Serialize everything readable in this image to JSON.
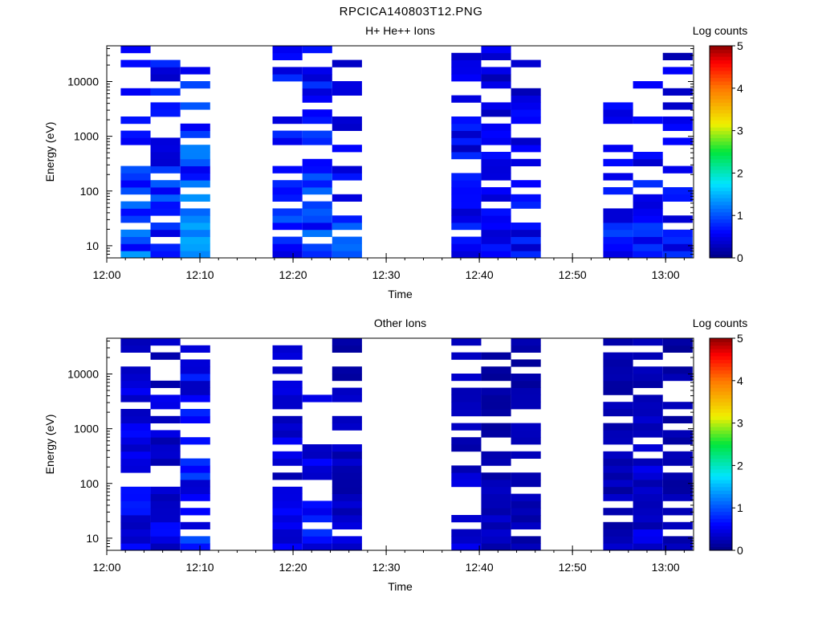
{
  "figure_title": "RPCICA140803T12.PNG",
  "chart_data": [
    {
      "type": "heatmap",
      "title": "H+ He++ Ions",
      "xlabel": "Time",
      "ylabel": "Energy (eV)",
      "y_scale": "log",
      "xlim": [
        "12:00",
        "13:03"
      ],
      "ylim": [
        6,
        45000
      ],
      "x_ticks": [
        "12:00",
        "12:10",
        "12:20",
        "12:30",
        "12:40",
        "12:50",
        "13:00"
      ],
      "y_ticks": [
        "10",
        "100",
        "1000",
        "10000"
      ],
      "colorbar": {
        "label": "Log counts",
        "ticks": [
          "0",
          "1",
          "2",
          "3",
          "4",
          "5"
        ],
        "range": [
          0,
          5
        ]
      },
      "time_bins": [
        [
          "12:01.5",
          "12:04.7"
        ],
        [
          "12:04.7",
          "12:07.9"
        ],
        [
          "12:07.9",
          "12:11.1"
        ],
        [
          "12:17.8",
          "12:21.0"
        ],
        [
          "12:21.0",
          "12:24.2"
        ],
        [
          "12:24.2",
          "12:27.4"
        ],
        [
          "12:37.0",
          "12:40.2"
        ],
        [
          "12:40.2",
          "12:43.4"
        ],
        [
          "12:43.4",
          "12:46.6"
        ],
        [
          "12:53.3",
          "12:56.5"
        ],
        [
          "12:56.5",
          "12:59.7"
        ],
        [
          "12:59.7",
          "13:02.9"
        ]
      ],
      "peak_log_counts": [
        1.4,
        1.2,
        1.6,
        1.2,
        1.3,
        1.2,
        1.0,
        0.9,
        0.9,
        1.0,
        1.0,
        0.9
      ],
      "empty_time_ranges": [
        [
          "12:11.1",
          "12:17.8"
        ],
        [
          "12:27.4",
          "12:37.0"
        ],
        [
          "12:46.6",
          "12:53.3"
        ]
      ]
    },
    {
      "type": "heatmap",
      "title": "Other Ions",
      "xlabel": "Time",
      "ylabel": "Energy (eV)",
      "y_scale": "log",
      "xlim": [
        "12:00",
        "13:03"
      ],
      "ylim": [
        6,
        45000
      ],
      "x_ticks": [
        "12:00",
        "12:10",
        "12:20",
        "12:30",
        "12:40",
        "12:50",
        "13:00"
      ],
      "y_ticks": [
        "10",
        "100",
        "1000",
        "10000"
      ],
      "colorbar": {
        "label": "Log counts",
        "ticks": [
          "0",
          "1",
          "2",
          "3",
          "4",
          "5"
        ],
        "range": [
          0,
          5
        ]
      },
      "time_bins": [
        [
          "12:01.5",
          "12:04.7"
        ],
        [
          "12:04.7",
          "12:07.9"
        ],
        [
          "12:07.9",
          "12:11.1"
        ],
        [
          "12:17.8",
          "12:21.0"
        ],
        [
          "12:21.0",
          "12:24.2"
        ],
        [
          "12:24.2",
          "12:27.4"
        ],
        [
          "12:37.0",
          "12:40.2"
        ],
        [
          "12:40.2",
          "12:43.4"
        ],
        [
          "12:43.4",
          "12:46.6"
        ],
        [
          "12:53.3",
          "12:56.5"
        ],
        [
          "12:56.5",
          "12:59.7"
        ],
        [
          "12:59.7",
          "13:02.9"
        ]
      ],
      "peak_log_counts": [
        0.8,
        0.7,
        1.1,
        0.7,
        0.9,
        0.5,
        0.6,
        0.4,
        0.4,
        0.4,
        0.6,
        0.4
      ],
      "empty_time_ranges": [
        [
          "12:11.1",
          "12:17.8"
        ],
        [
          "12:27.4",
          "12:37.0"
        ],
        [
          "12:46.6",
          "12:53.3"
        ]
      ]
    }
  ]
}
